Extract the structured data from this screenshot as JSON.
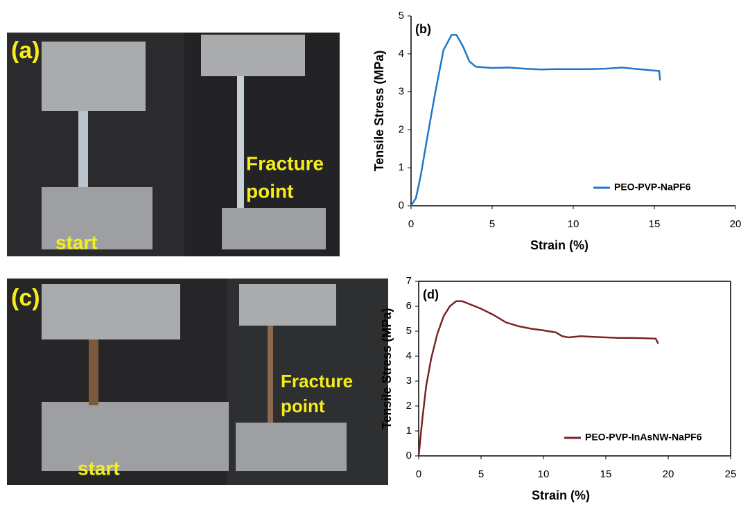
{
  "photos": [
    {
      "panel": "(a)",
      "start": "start",
      "fracture": [
        "Fracture",
        "point"
      ]
    },
    {
      "panel": "(c)",
      "start": "start",
      "fracture": [
        "Fracture",
        "point"
      ]
    }
  ],
  "chart_data": [
    {
      "type": "line",
      "annotation": "(b)",
      "xlabel": "Strain (%)",
      "ylabel": "Tensile Stress (MPa)",
      "x": [
        0,
        0.3,
        0.6,
        1,
        1.5,
        2,
        2.5,
        2.8,
        3.2,
        3.6,
        4,
        5,
        6,
        7,
        8,
        9,
        10,
        11,
        12,
        13,
        14,
        15,
        15.3,
        15.35
      ],
      "series": [
        {
          "name": "PEO-PVP-NaPF6",
          "color": "#1f77c9",
          "values": [
            0,
            0.2,
            0.8,
            1.8,
            3.0,
            4.1,
            4.5,
            4.5,
            4.2,
            3.8,
            3.66,
            3.63,
            3.64,
            3.61,
            3.59,
            3.6,
            3.6,
            3.6,
            3.61,
            3.64,
            3.6,
            3.56,
            3.55,
            3.3
          ]
        }
      ],
      "xlim": [
        0,
        20
      ],
      "xticks": [
        0,
        5,
        10,
        15,
        20
      ],
      "ylim": [
        0,
        5
      ],
      "yticks": [
        0,
        1,
        2,
        3,
        4,
        5
      ],
      "box": false,
      "legend": "lower right"
    },
    {
      "type": "line",
      "annotation": "(d)",
      "xlabel": "Strain (%)",
      "ylabel": "Tensile Stress (MPa)",
      "x": [
        0,
        0.3,
        0.6,
        1,
        1.5,
        2,
        2.5,
        3,
        3.5,
        4,
        5,
        6,
        7,
        8,
        9,
        10,
        11,
        11.5,
        12,
        13,
        14,
        15,
        16,
        17,
        18,
        19,
        19.2
      ],
      "series": [
        {
          "name": "PEO-PVP-InAsNW-NaPF6",
          "color": "#7b2326",
          "values": [
            0,
            1.5,
            2.8,
            3.9,
            4.9,
            5.6,
            6.0,
            6.2,
            6.2,
            6.1,
            5.9,
            5.65,
            5.35,
            5.2,
            5.1,
            5.03,
            4.95,
            4.8,
            4.75,
            4.8,
            4.77,
            4.75,
            4.73,
            4.73,
            4.72,
            4.7,
            4.5
          ]
        }
      ],
      "xlim": [
        0,
        25
      ],
      "xticks": [
        0,
        5,
        10,
        15,
        20,
        25
      ],
      "ylim": [
        0,
        7
      ],
      "yticks": [
        0,
        1,
        2,
        3,
        4,
        5,
        6,
        7
      ],
      "box": true,
      "legend": "lower right"
    }
  ]
}
